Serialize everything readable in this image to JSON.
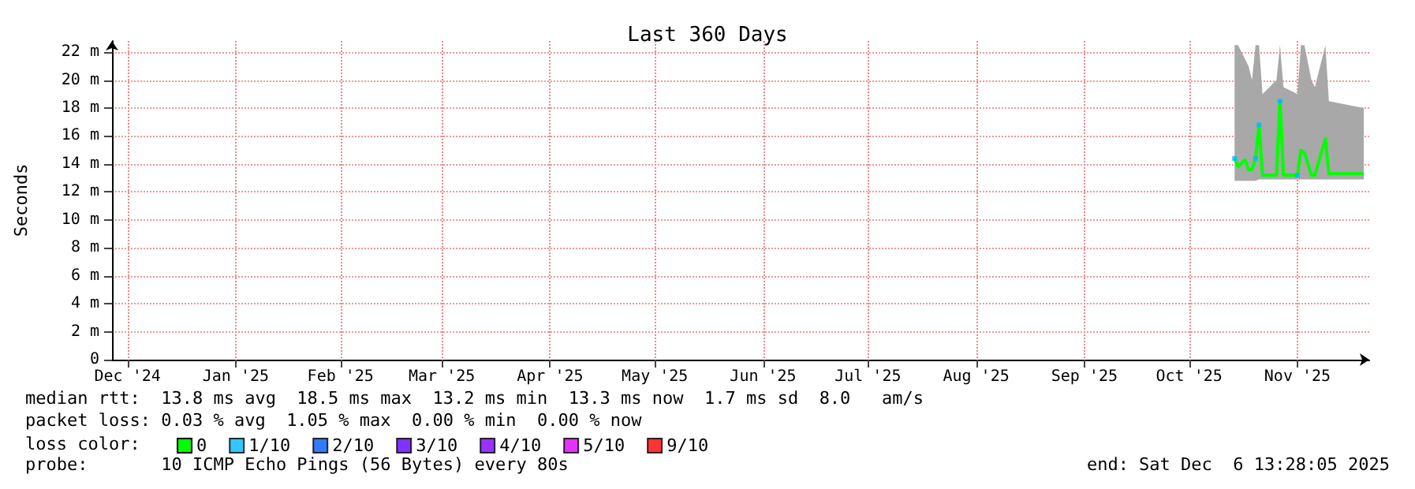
{
  "chart_data": {
    "type": "line",
    "title": "Last 360 Days",
    "ylabel": "Seconds",
    "x": [
      "2025-10-29",
      "2025-10-30",
      "2025-11-01",
      "2025-11-02",
      "2025-11-03",
      "2025-11-04",
      "2025-11-05",
      "2025-11-06",
      "2025-11-10",
      "2025-11-11",
      "2025-11-12",
      "2025-11-16",
      "2025-11-17",
      "2025-11-18",
      "2025-11-20",
      "2025-11-21",
      "2025-11-24",
      "2025-11-25",
      "2025-12-05"
    ],
    "series": [
      {
        "name": "0",
        "color": "#00ff00",
        "values": [
          14.4,
          13.8,
          14.3,
          13.6,
          13.6,
          14.4,
          16.8,
          13.2,
          13.2,
          18.5,
          13.2,
          13.2,
          15.0,
          14.8,
          13.2,
          13.2,
          15.8,
          13.3,
          13.3
        ],
        "lower": [
          12.8,
          12.8,
          12.8,
          12.8,
          12.8,
          12.8,
          12.9,
          12.9,
          12.9,
          12.9,
          12.9,
          12.9,
          12.9,
          12.9,
          12.9,
          12.9,
          12.9,
          12.9,
          12.9
        ],
        "upper": [
          22.5,
          22.5,
          21.5,
          21,
          20,
          22.5,
          22.5,
          19,
          20,
          22.5,
          19.5,
          19,
          22.5,
          22.5,
          20,
          19.5,
          22.5,
          18.5,
          18
        ]
      },
      {
        "name": "1/10",
        "color": "#00b8ff",
        "type": "scatter",
        "marker": "square",
        "values": [
          14.4,
          null,
          null,
          null,
          null,
          14.4,
          16.8,
          null,
          null,
          18.5,
          null,
          13.2,
          null,
          null,
          null,
          null,
          null,
          null,
          null
        ]
      },
      {
        "name": "2/10",
        "color": "#0059ff",
        "type": "scatter",
        "values": [
          null,
          null,
          null,
          null,
          null,
          null,
          null,
          null,
          null,
          null,
          null,
          null,
          null,
          null,
          null,
          null,
          null,
          null,
          null
        ]
      },
      {
        "name": "3/10",
        "color": "#5e00ff",
        "type": "scatter",
        "values": [
          null,
          null,
          null,
          null,
          null,
          null,
          null,
          null,
          null,
          null,
          null,
          null,
          null,
          null,
          null,
          null,
          null,
          null,
          null
        ]
      },
      {
        "name": "4/10",
        "color": "#7e00ff",
        "type": "scatter",
        "values": [
          null,
          null,
          null,
          null,
          null,
          null,
          null,
          null,
          null,
          null,
          null,
          null,
          null,
          null,
          null,
          null,
          null,
          null,
          null
        ]
      },
      {
        "name": "5/10",
        "color": "#dd00ff",
        "type": "scatter",
        "values": [
          null,
          null,
          null,
          null,
          null,
          null,
          null,
          null,
          null,
          null,
          null,
          null,
          null,
          null,
          null,
          null,
          null,
          null,
          null
        ]
      },
      {
        "name": "9/10",
        "color": "#ff0000",
        "type": "scatter",
        "values": [
          null,
          null,
          null,
          null,
          null,
          null,
          null,
          null,
          null,
          null,
          null,
          null,
          null,
          null,
          null,
          null,
          null,
          null,
          null
        ]
      }
    ],
    "legend_title": "loss color:",
    "legend": "bottom left",
    "grid": true,
    "marker": "none",
    "xlim": [
      "2024-12-11T13:28",
      "2025-12-06T13:28"
    ],
    "xticks": [
      {
        "value": "2024-12-16",
        "label": "Dec '24"
      },
      {
        "value": "2025-01-16",
        "label": "Jan '25"
      },
      {
        "value": "2025-02-15",
        "label": "Feb '25"
      },
      {
        "value": "2025-03-16",
        "label": "Mar '25"
      },
      {
        "value": "2025-04-16",
        "label": "Apr '25"
      },
      {
        "value": "2025-05-16",
        "label": "May '25"
      },
      {
        "value": "2025-06-16",
        "label": "Jun '25"
      },
      {
        "value": "2025-07-16",
        "label": "Jul '25"
      },
      {
        "value": "2025-08-16",
        "label": "Aug '25"
      },
      {
        "value": "2025-09-16",
        "label": "Sep '25"
      },
      {
        "value": "2025-10-16",
        "label": "Oct '25"
      },
      {
        "value": "2025-11-16",
        "label": "Nov '25"
      }
    ],
    "ylim": [
      0,
      22.8
    ],
    "yticks": [
      0,
      {
        "value": 2,
        "label": "2 m"
      },
      {
        "value": 4,
        "label": "4 m"
      },
      {
        "value": 6,
        "label": "6 m"
      },
      {
        "value": 8,
        "label": "8 m"
      },
      {
        "value": 10,
        "label": "10 m"
      },
      {
        "value": 12,
        "label": "12 m"
      },
      {
        "value": 14,
        "label": "14 m"
      },
      {
        "value": 16,
        "label": "16 m"
      },
      {
        "value": 18,
        "label": "18 m"
      },
      {
        "value": 20,
        "label": "20 m"
      },
      {
        "value": 22,
        "label": "22 m"
      }
    ],
    "annotations": [
      "median rtt:  13.8 ms avg  18.5 ms max  13.2 ms min  13.3 ms now  1.7 ms sd  8.0   am/s",
      "packet loss: 0.03 % avg  1.05 % max  0.00 % min  0.00 % now",
      "probe:       10 ICMP Echo Pings (56 Bytes) every 80s",
      "end: Sat Dec  6 13:28:05 2025"
    ]
  }
}
